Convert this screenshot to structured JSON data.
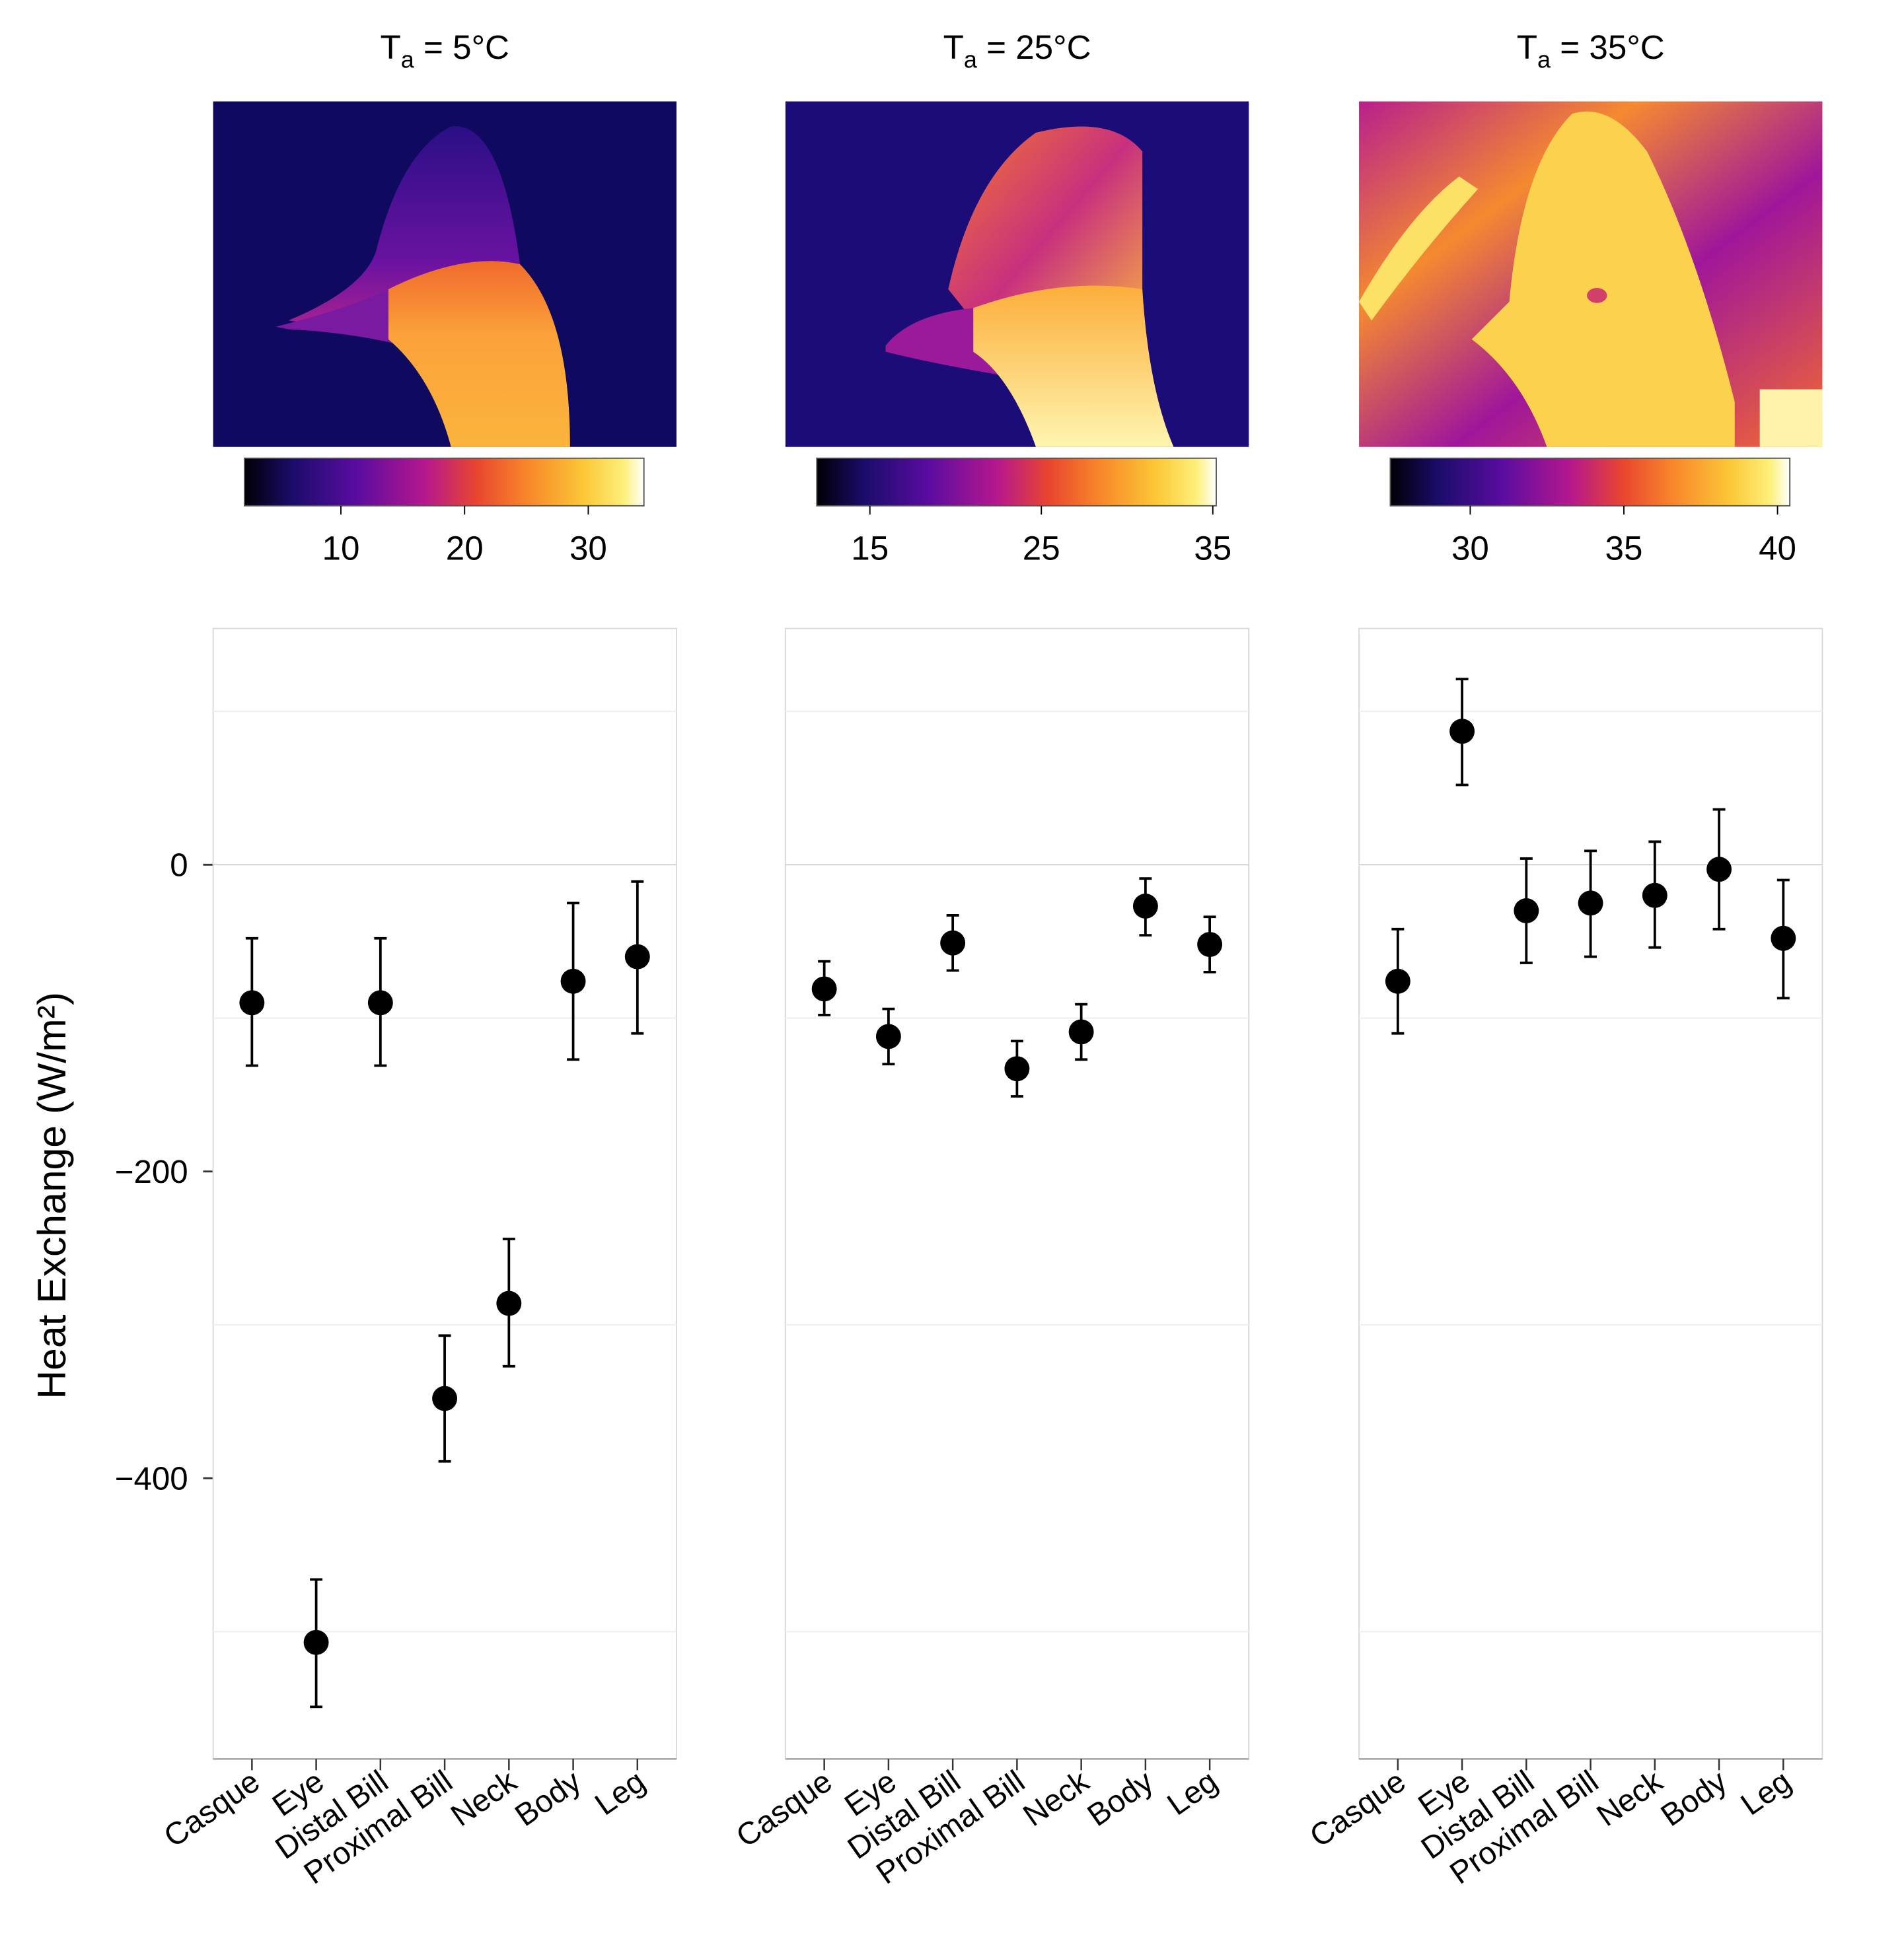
{
  "chart_data": [
    {
      "type": "scatter",
      "title": {
        "main": "T",
        "sub": "a",
        "rest": " = 5°C"
      },
      "colorbar": {
        "range": [
          2.2,
          34.5
        ],
        "ticks": [
          "10",
          "20",
          "30"
        ],
        "tick_values": [
          10,
          20,
          30
        ]
      },
      "categories": [
        "Casque",
        "Eye",
        "Distal Bill",
        "Proximal Bill",
        "Neck",
        "Body",
        "Leg"
      ],
      "values": [
        -90,
        -507,
        -90,
        -348,
        -286,
        -76,
        -60
      ],
      "error_low": [
        -131,
        -549,
        -131,
        -389,
        -327,
        -127,
        -110
      ],
      "error_high": [
        -48,
        -466,
        -48,
        -307,
        -244,
        -25,
        -11
      ]
    },
    {
      "type": "scatter",
      "title": {
        "main": "T",
        "sub": "a",
        "rest": " = 25°C"
      },
      "colorbar": {
        "range": [
          11.9,
          35.2
        ],
        "ticks": [
          "15",
          "25",
          "35"
        ],
        "tick_values": [
          15,
          25,
          35
        ]
      },
      "categories": [
        "Casque",
        "Eye",
        "Distal Bill",
        "Proximal Bill",
        "Neck",
        "Body",
        "Leg"
      ],
      "values": [
        -81,
        -112,
        -51,
        -133,
        -109,
        -27,
        -52
      ],
      "error_low": [
        -98,
        -130,
        -69,
        -151,
        -127,
        -46,
        -70
      ],
      "error_high": [
        -63,
        -94,
        -33,
        -115,
        -91,
        -9,
        -34
      ]
    },
    {
      "type": "scatter",
      "title": {
        "main": "T",
        "sub": "a",
        "rest": " = 35°C"
      },
      "colorbar": {
        "range": [
          27.4,
          40.4
        ],
        "ticks": [
          "30",
          "35",
          "40"
        ],
        "tick_values": [
          30,
          35,
          40
        ]
      },
      "categories": [
        "Casque",
        "Eye",
        "Distal Bill",
        "Proximal Bill",
        "Neck",
        "Body",
        "Leg"
      ],
      "values": [
        -76,
        87,
        -30,
        -25,
        -20,
        -3,
        -48
      ],
      "error_low": [
        -110,
        52,
        -64,
        -60,
        -54,
        -42,
        -87
      ],
      "error_high": [
        -42,
        121,
        4,
        9,
        15,
        36,
        -10
      ]
    }
  ],
  "axes": {
    "ylabel": "Heat Exchange (W/m²)",
    "ylim": [
      -583,
      154
    ],
    "yticks": [
      "0",
      "−200",
      "−400"
    ],
    "ytick_values": [
      0,
      -200,
      -400
    ],
    "grid_values": [
      100,
      0,
      -100,
      -300,
      -500
    ],
    "grid": true
  },
  "colors": {
    "points": "#000000",
    "grid": "#e6e6e6",
    "colormap": [
      "#000004",
      "#1b0c6b",
      "#5a0ca0",
      "#b5178e",
      "#e8452f",
      "#f8832a",
      "#fcc737",
      "#fdf07a",
      "#ffffff"
    ]
  }
}
